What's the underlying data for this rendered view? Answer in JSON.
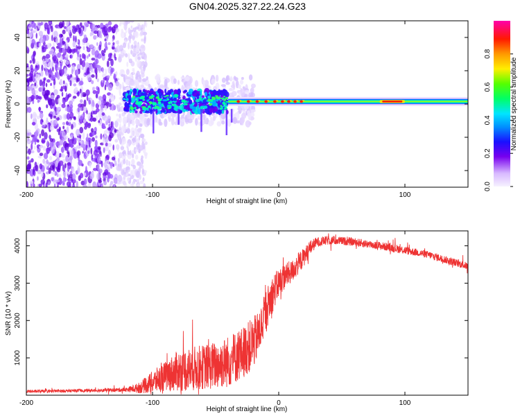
{
  "title": "GN04.2025.327.22.24.G23",
  "chart_data": [
    {
      "type": "heatmap",
      "xlabel": "Height of straight line (km)",
      "ylabel": "Frequency (Hz)",
      "xlim": [
        -200,
        150
      ],
      "ylim": [
        -50,
        50
      ],
      "xticks": [
        -200,
        -100,
        0,
        100
      ],
      "yticks": [
        -40,
        -20,
        0,
        20,
        40
      ],
      "colorbar": {
        "label": "Normalized spectral amplitude",
        "range": [
          0,
          1
        ],
        "ticks": [
          0.0,
          0.2,
          0.4,
          0.6,
          0.8
        ],
        "tick_labels": [
          "0.0",
          "0.2",
          "0.4",
          "0.6",
          "0.8"
        ],
        "colors": [
          "#f4f0ff",
          "#7700ee",
          "#0033ff",
          "#00ddff",
          "#00ff00",
          "#ffee00",
          "#ff6600",
          "#ff0000",
          "#ff00aa"
        ]
      },
      "features": {
        "noise_region_x": [
          -200,
          -115
        ],
        "turbulent_band_x": [
          -122,
          -40
        ],
        "turbulent_band_freq": [
          -5,
          8
        ],
        "stable_line_x": [
          -40,
          150
        ],
        "stable_line_freq": 1.5,
        "peak_amplitude_x": [
          80,
          100
        ]
      }
    },
    {
      "type": "line",
      "xlabel": "Height of straight line (km)",
      "ylabel": "SNR (10 * v/v)",
      "xlim": [
        -200,
        150
      ],
      "ylim": [
        0,
        4400
      ],
      "xticks": [
        -200,
        -100,
        0,
        100
      ],
      "yticks": [
        1000,
        2000,
        3000,
        4000
      ],
      "series": [
        {
          "name": "SNR",
          "color": "#ee3333",
          "x": [
            -200,
            -180,
            -160,
            -140,
            -120,
            -110,
            -100,
            -90,
            -80,
            -70,
            -60,
            -50,
            -40,
            -30,
            -20,
            -15,
            -10,
            -5,
            0,
            5,
            10,
            15,
            20,
            25,
            30,
            40,
            50,
            60,
            70,
            80,
            90,
            100,
            110,
            120,
            130,
            140,
            150
          ],
          "y": [
            100,
            110,
            120,
            130,
            150,
            200,
            350,
            500,
            650,
            700,
            750,
            800,
            900,
            1100,
            1400,
            1700,
            2300,
            2700,
            3000,
            3200,
            3300,
            3500,
            3700,
            3950,
            4100,
            4150,
            4130,
            4100,
            4050,
            4000,
            3950,
            3880,
            3820,
            3750,
            3650,
            3550,
            3450
          ],
          "noise": [
            40,
            40,
            40,
            45,
            60,
            150,
            300,
            400,
            550,
            600,
            600,
            650,
            700,
            700,
            700,
            600,
            550,
            500,
            400,
            350,
            300,
            300,
            250,
            200,
            130,
            120,
            110,
            110,
            110,
            110,
            110,
            110,
            100,
            100,
            100,
            100,
            100
          ]
        }
      ]
    }
  ]
}
